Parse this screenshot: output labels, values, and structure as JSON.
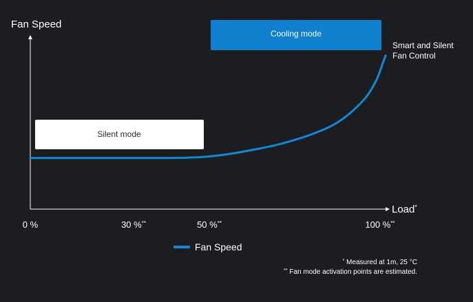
{
  "chart_data": {
    "type": "line",
    "y_axis_label": "Fan Speed",
    "x_axis_label": "Load",
    "x_axis_label_suffix": "*",
    "x_ticks": [
      {
        "label": "0 %",
        "suffix": "",
        "value": 0
      },
      {
        "label": "30 %",
        "suffix": "**",
        "value": 30
      },
      {
        "label": "50 %",
        "suffix": "**",
        "value": 50
      },
      {
        "label": "100 %",
        "suffix": "**",
        "value": 100
      }
    ],
    "xlim": [
      0,
      100
    ],
    "ylim": [
      0,
      100
    ],
    "series": [
      {
        "name": "Fan Speed",
        "color": "#1288d6",
        "points": [
          [
            0,
            30
          ],
          [
            10,
            30
          ],
          [
            20,
            30
          ],
          [
            30,
            30
          ],
          [
            40,
            30
          ],
          [
            48,
            30.5
          ],
          [
            55,
            32
          ],
          [
            62,
            34.5
          ],
          [
            70,
            38
          ],
          [
            78,
            43
          ],
          [
            84,
            48
          ],
          [
            88,
            53
          ],
          [
            92,
            60
          ],
          [
            95,
            67
          ],
          [
            97.5,
            76
          ],
          [
            99.3,
            86
          ],
          [
            100,
            90
          ]
        ]
      }
    ],
    "boxes": [
      {
        "label": "Silent mode",
        "fill": "#ffffff",
        "text_color": "#2a2a2a"
      },
      {
        "label": "Cooling mode",
        "fill": "#0f7fce",
        "text_color": "#ffffff"
      }
    ],
    "annotation": [
      "Smart and Silent",
      "Fan Control"
    ],
    "legend": {
      "position": "bottom-center"
    },
    "footnotes": [
      {
        "marker": "*",
        "text": " Measured at 1m, 25 °C"
      },
      {
        "marker": "**",
        "text": " Fan mode activation points are estimated."
      }
    ],
    "colors": {
      "background": "#1b1d20",
      "axis": "#ffffff",
      "line": "#1288d6"
    }
  }
}
